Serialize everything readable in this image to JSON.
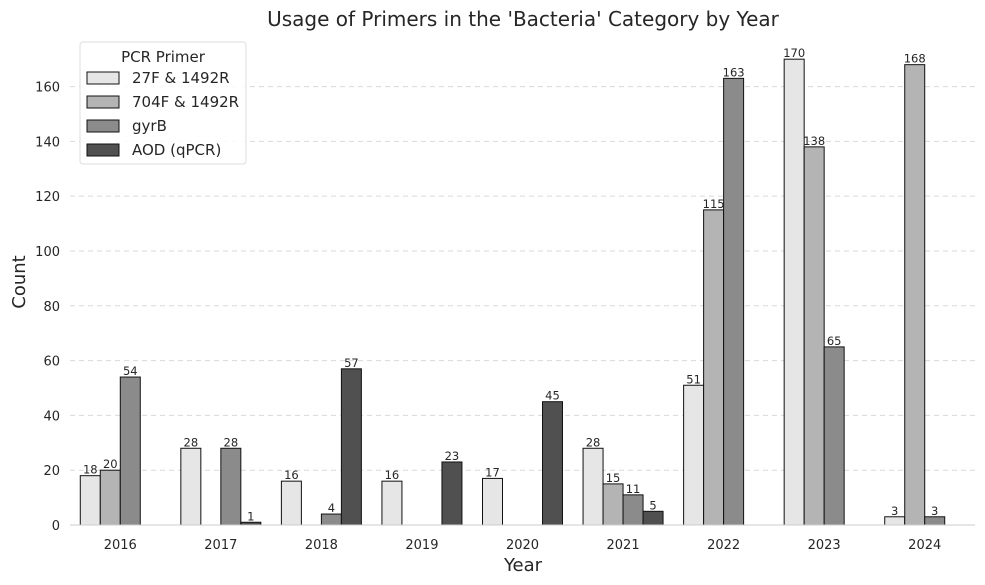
{
  "chart_data": {
    "type": "bar",
    "title": "Usage of Primers in the 'Bacteria' Category by Year",
    "xlabel": "Year",
    "ylabel": "Count",
    "categories": [
      "2016",
      "2017",
      "2018",
      "2019",
      "2020",
      "2021",
      "2022",
      "2023",
      "2024"
    ],
    "ylim": [
      0,
      177
    ],
    "yticks": [
      0,
      20,
      40,
      60,
      80,
      100,
      120,
      140,
      160
    ],
    "grid": "horizontal dashed",
    "legend": {
      "title": "PCR Primer",
      "placement": "top-left"
    },
    "series": [
      {
        "name": "27F & 1492R",
        "color": "#e6e6e6",
        "values": [
          18,
          28,
          16,
          16,
          17,
          28,
          51,
          170,
          3
        ]
      },
      {
        "name": "704F & 1492R",
        "color": "#b4b4b4",
        "values": [
          20,
          null,
          null,
          null,
          null,
          15,
          115,
          138,
          168
        ]
      },
      {
        "name": "gyrB",
        "color": "#8b8b8b",
        "values": [
          54,
          28,
          4,
          null,
          null,
          11,
          163,
          65,
          3
        ]
      },
      {
        "name": "AOD (qPCR)",
        "color": "#505050",
        "values": [
          null,
          1,
          57,
          23,
          45,
          5,
          null,
          null,
          null
        ]
      }
    ]
  }
}
